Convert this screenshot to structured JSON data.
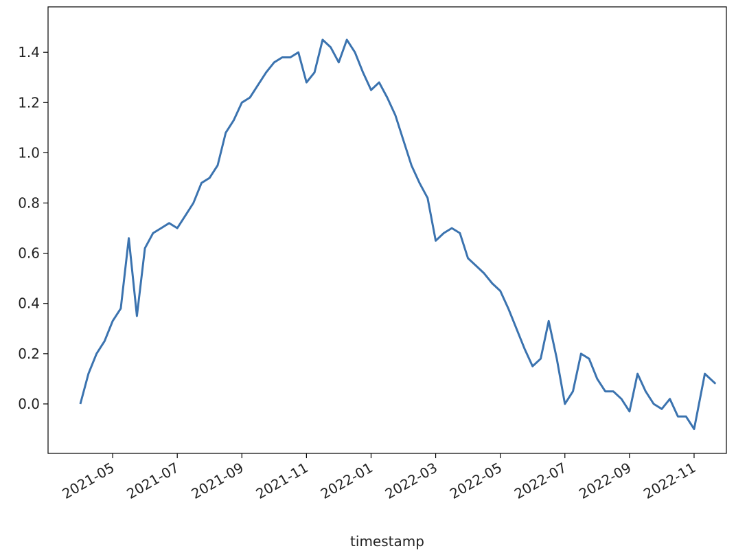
{
  "chart_data": {
    "type": "line",
    "xlabel": "timestamp",
    "color": "#3b73af",
    "x": [
      "2021-04",
      "2021-04",
      "2021-04",
      "2021-04",
      "2021-05",
      "2021-05",
      "2021-05",
      "2021-05",
      "2021-06",
      "2021-06",
      "2021-06",
      "2021-06",
      "2021-07",
      "2021-07",
      "2021-07",
      "2021-07",
      "2021-08",
      "2021-08",
      "2021-08",
      "2021-08",
      "2021-09",
      "2021-09",
      "2021-09",
      "2021-09",
      "2021-10",
      "2021-10",
      "2021-10",
      "2021-10",
      "2021-11",
      "2021-11",
      "2021-11",
      "2021-11",
      "2021-12",
      "2021-12",
      "2021-12",
      "2021-12",
      "2022-01",
      "2022-01",
      "2022-01",
      "2022-01",
      "2022-02",
      "2022-02",
      "2022-02",
      "2022-02",
      "2022-03",
      "2022-03",
      "2022-03",
      "2022-03",
      "2022-04",
      "2022-04",
      "2022-04",
      "2022-04",
      "2022-05",
      "2022-05",
      "2022-05",
      "2022-05",
      "2022-06",
      "2022-06",
      "2022-06",
      "2022-06",
      "2022-07",
      "2022-07",
      "2022-07",
      "2022-07",
      "2022-08",
      "2022-08",
      "2022-08",
      "2022-08",
      "2022-09",
      "2022-09",
      "2022-09",
      "2022-09",
      "2022-10",
      "2022-10",
      "2022-10",
      "2022-10",
      "2022-11",
      "2022-11",
      "2022-11"
    ],
    "values": [
      0.0,
      0.12,
      0.2,
      0.25,
      0.33,
      0.38,
      0.66,
      0.35,
      0.62,
      0.68,
      0.7,
      0.72,
      0.7,
      0.75,
      0.8,
      0.88,
      0.9,
      0.95,
      1.08,
      1.13,
      1.2,
      1.22,
      1.27,
      1.32,
      1.36,
      1.38,
      1.38,
      1.4,
      1.28,
      1.32,
      1.45,
      1.42,
      1.36,
      1.45,
      1.4,
      1.32,
      1.25,
      1.28,
      1.22,
      1.15,
      1.05,
      0.95,
      0.88,
      0.82,
      0.65,
      0.68,
      0.7,
      0.68,
      0.58,
      0.55,
      0.52,
      0.48,
      0.45,
      0.38,
      0.3,
      0.22,
      0.15,
      0.18,
      0.33,
      0.18,
      0.0,
      0.05,
      0.2,
      0.18,
      0.1,
      0.05,
      0.05,
      0.02,
      -0.03,
      0.12,
      0.05,
      0.0,
      -0.02,
      0.02,
      -0.05,
      -0.05,
      -0.1,
      0.12,
      0.08
    ],
    "xlim": [
      "2021-03",
      "2022-12"
    ],
    "xticks": [
      "2021-05",
      "2021-07",
      "2021-09",
      "2021-11",
      "2022-01",
      "2022-03",
      "2022-05",
      "2022-07",
      "2022-09",
      "2022-11"
    ],
    "ylim": [
      -0.197,
      1.581
    ],
    "yticks": [
      {
        "value": 0,
        "label": "0.0"
      },
      0.2,
      0.4,
      0.6,
      0.8,
      {
        "value": 1,
        "label": "1.0"
      },
      1.2,
      1.4
    ]
  }
}
